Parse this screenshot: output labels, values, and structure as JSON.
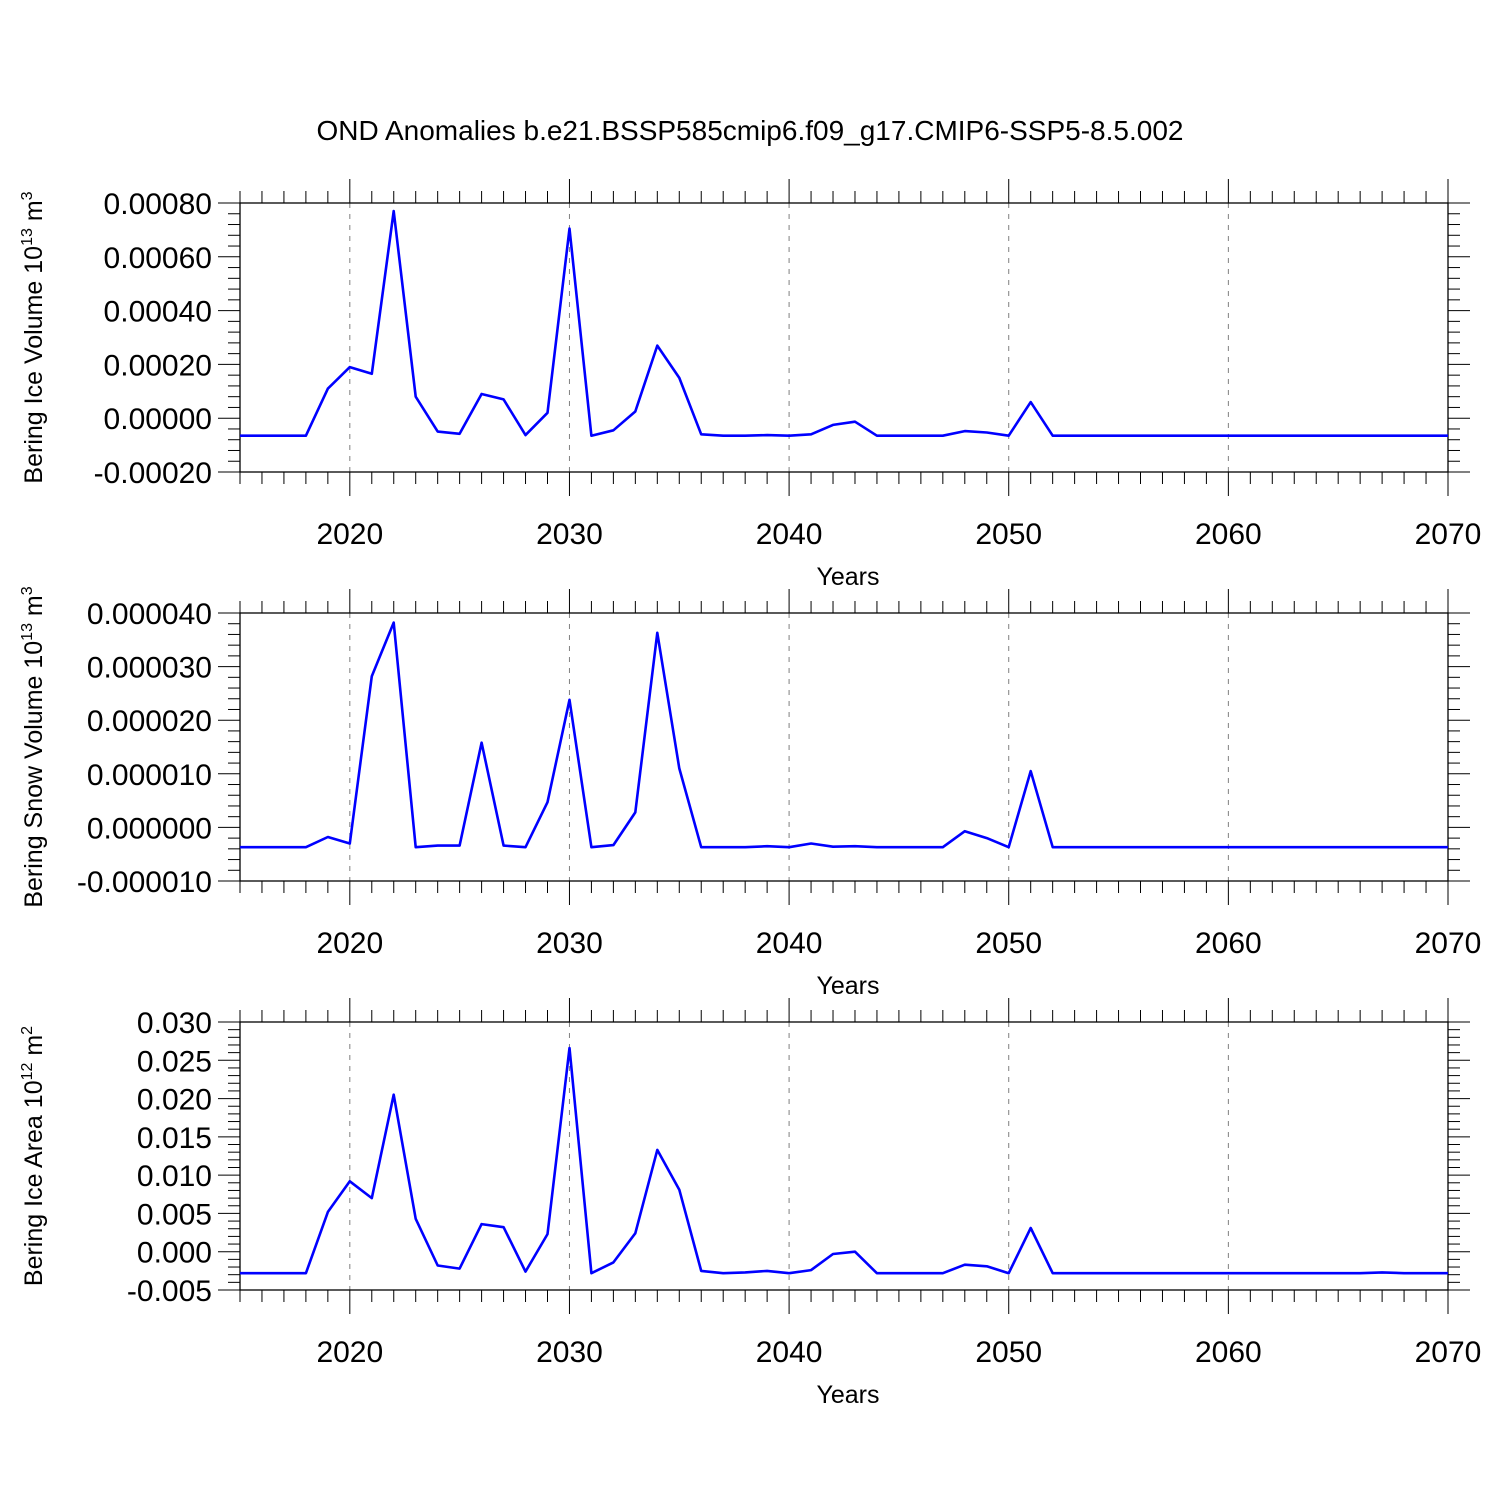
{
  "colors": {
    "series": "#0000FF",
    "grid": "#808080",
    "axes": "#000000"
  },
  "title": "OND Anomalies b.e21.BSSP585cmip6.f09_g17.CMIP6-SSP5-8.5.002",
  "chart_data": [
    {
      "type": "line",
      "xlabel": "Years",
      "ylabel": {
        "text": "Bering Ice Volume 10",
        "sup1": "13",
        "mid": " m",
        "sup2": "3"
      },
      "xlim": [
        2015,
        2070
      ],
      "ylim": [
        -0.0002,
        0.0008
      ],
      "x_ticks": [
        2020,
        2030,
        2040,
        2050,
        2060,
        2070
      ],
      "x_tick_labels": [
        "2020",
        "2030",
        "2040",
        "2050",
        "2060",
        "2070"
      ],
      "y_ticks": [
        -0.0002,
        0,
        0.0002,
        0.0004,
        0.0006,
        0.0008
      ],
      "y_tick_labels": [
        "-0.00020",
        "0.00000",
        "0.00020",
        "0.00040",
        "0.00060",
        "0.00080"
      ],
      "grid": "vertical dashed at major x ticks",
      "x": [
        2015,
        2016,
        2017,
        2018,
        2019,
        2020,
        2021,
        2022,
        2023,
        2024,
        2025,
        2026,
        2027,
        2028,
        2029,
        2030,
        2031,
        2032,
        2033,
        2034,
        2035,
        2036,
        2037,
        2038,
        2039,
        2040,
        2041,
        2042,
        2043,
        2044,
        2045,
        2046,
        2047,
        2048,
        2049,
        2050,
        2051,
        2052,
        2053,
        2054,
        2055,
        2056,
        2057,
        2058,
        2059,
        2060,
        2061,
        2062,
        2063,
        2064,
        2065,
        2066,
        2067,
        2068,
        2069,
        2070
      ],
      "series": [
        {
          "values": [
            -6.5e-05,
            -6.5e-05,
            -6.5e-05,
            -6.5e-05,
            0.00011,
            0.00019,
            0.000165,
            0.00077,
            8e-05,
            -5e-05,
            -5.8e-05,
            9e-05,
            7e-05,
            -6.3e-05,
            2e-05,
            0.000705,
            -6.5e-05,
            -4.5e-05,
            2.5e-05,
            0.00027,
            0.00015,
            -6e-05,
            -6.5e-05,
            -6.5e-05,
            -6.3e-05,
            -6.5e-05,
            -6e-05,
            -2.5e-05,
            -1.3e-05,
            -6.5e-05,
            -6.5e-05,
            -6.5e-05,
            -6.5e-05,
            -4.8e-05,
            -5.3e-05,
            -6.5e-05,
            6e-05,
            -6.5e-05,
            -6.5e-05,
            -6.5e-05,
            -6.5e-05,
            -6.5e-05,
            -6.5e-05,
            -6.5e-05,
            -6.5e-05,
            -6.5e-05,
            -6.5e-05,
            -6.5e-05,
            -6.5e-05,
            -6.5e-05,
            -6.5e-05,
            -6.5e-05,
            -6.5e-05,
            -6.5e-05,
            -6.5e-05,
            -6.5e-05
          ]
        }
      ]
    },
    {
      "type": "line",
      "xlabel": "Years",
      "ylabel": {
        "text": "Bering Snow Volume 10",
        "sup1": "13",
        "mid": " m",
        "sup2": "3"
      },
      "xlim": [
        2015,
        2070
      ],
      "ylim": [
        -1e-05,
        4e-05
      ],
      "x_ticks": [
        2020,
        2030,
        2040,
        2050,
        2060,
        2070
      ],
      "x_tick_labels": [
        "2020",
        "2030",
        "2040",
        "2050",
        "2060",
        "2070"
      ],
      "y_ticks": [
        -1e-05,
        0,
        1e-05,
        2e-05,
        3e-05,
        4e-05
      ],
      "y_tick_labels": [
        "-0.000010",
        "0.000000",
        "0.000010",
        "0.000020",
        "0.000030",
        "0.000040"
      ],
      "grid": "vertical dashed at major x ticks",
      "x": [
        2015,
        2016,
        2017,
        2018,
        2019,
        2020,
        2021,
        2022,
        2023,
        2024,
        2025,
        2026,
        2027,
        2028,
        2029,
        2030,
        2031,
        2032,
        2033,
        2034,
        2035,
        2036,
        2037,
        2038,
        2039,
        2040,
        2041,
        2042,
        2043,
        2044,
        2045,
        2046,
        2047,
        2048,
        2049,
        2050,
        2051,
        2052,
        2053,
        2054,
        2055,
        2056,
        2057,
        2058,
        2059,
        2060,
        2061,
        2062,
        2063,
        2064,
        2065,
        2066,
        2067,
        2068,
        2069,
        2070
      ],
      "series": [
        {
          "values": [
            -3.7e-06,
            -3.7e-06,
            -3.7e-06,
            -3.7e-06,
            -1.8e-06,
            -3e-06,
            2.82e-05,
            3.82e-05,
            -3.7e-06,
            -3.4e-06,
            -3.4e-06,
            1.58e-05,
            -3.4e-06,
            -3.7e-06,
            4.7e-06,
            2.38e-05,
            -3.7e-06,
            -3.3e-06,
            2.8e-06,
            3.63e-05,
            1.1e-05,
            -3.7e-06,
            -3.7e-06,
            -3.7e-06,
            -3.5e-06,
            -3.7e-06,
            -3e-06,
            -3.6e-06,
            -3.5e-06,
            -3.7e-06,
            -3.7e-06,
            -3.7e-06,
            -3.7e-06,
            -7e-07,
            -2e-06,
            -3.7e-06,
            1.05e-05,
            -3.7e-06,
            -3.7e-06,
            -3.7e-06,
            -3.7e-06,
            -3.7e-06,
            -3.7e-06,
            -3.7e-06,
            -3.7e-06,
            -3.7e-06,
            -3.7e-06,
            -3.7e-06,
            -3.7e-06,
            -3.7e-06,
            -3.7e-06,
            -3.7e-06,
            -3.7e-06,
            -3.7e-06,
            -3.7e-06,
            -3.7e-06
          ]
        }
      ]
    },
    {
      "type": "line",
      "xlabel": "Years",
      "ylabel": {
        "text": "Bering Ice Area 10",
        "sup1": "12",
        "mid": " m",
        "sup2": "2"
      },
      "xlim": [
        2015,
        2070
      ],
      "ylim": [
        -0.005,
        0.03
      ],
      "x_ticks": [
        2020,
        2030,
        2040,
        2050,
        2060,
        2070
      ],
      "x_tick_labels": [
        "2020",
        "2030",
        "2040",
        "2050",
        "2060",
        "2070"
      ],
      "y_ticks": [
        -0.005,
        0,
        0.005,
        0.01,
        0.015,
        0.02,
        0.025,
        0.03
      ],
      "y_tick_labels": [
        "-0.005",
        "0.000",
        "0.005",
        "0.010",
        "0.015",
        "0.020",
        "0.025",
        "0.030"
      ],
      "grid": "vertical dashed at major x ticks",
      "x": [
        2015,
        2016,
        2017,
        2018,
        2019,
        2020,
        2021,
        2022,
        2023,
        2024,
        2025,
        2026,
        2027,
        2028,
        2029,
        2030,
        2031,
        2032,
        2033,
        2034,
        2035,
        2036,
        2037,
        2038,
        2039,
        2040,
        2041,
        2042,
        2043,
        2044,
        2045,
        2046,
        2047,
        2048,
        2049,
        2050,
        2051,
        2052,
        2053,
        2054,
        2055,
        2056,
        2057,
        2058,
        2059,
        2060,
        2061,
        2062,
        2063,
        2064,
        2065,
        2066,
        2067,
        2068,
        2069,
        2070
      ],
      "series": [
        {
          "values": [
            -0.0028,
            -0.0028,
            -0.0028,
            -0.0028,
            0.0052,
            0.0092,
            0.007,
            0.0205,
            0.0043,
            -0.0018,
            -0.0022,
            0.0036,
            0.0032,
            -0.0026,
            0.0023,
            0.0266,
            -0.0028,
            -0.0014,
            0.0024,
            0.0133,
            0.0081,
            -0.0025,
            -0.0028,
            -0.0027,
            -0.0025,
            -0.0028,
            -0.0024,
            -0.0003,
            0,
            -0.0028,
            -0.0028,
            -0.0028,
            -0.0028,
            -0.0017,
            -0.0019,
            -0.0028,
            0.0031,
            -0.0028,
            -0.0028,
            -0.0028,
            -0.0028,
            -0.0028,
            -0.0028,
            -0.0028,
            -0.0028,
            -0.0028,
            -0.0028,
            -0.0028,
            -0.0028,
            -0.0028,
            -0.0028,
            -0.0028,
            -0.0027,
            -0.0028,
            -0.0028,
            -0.0028
          ]
        }
      ]
    }
  ]
}
